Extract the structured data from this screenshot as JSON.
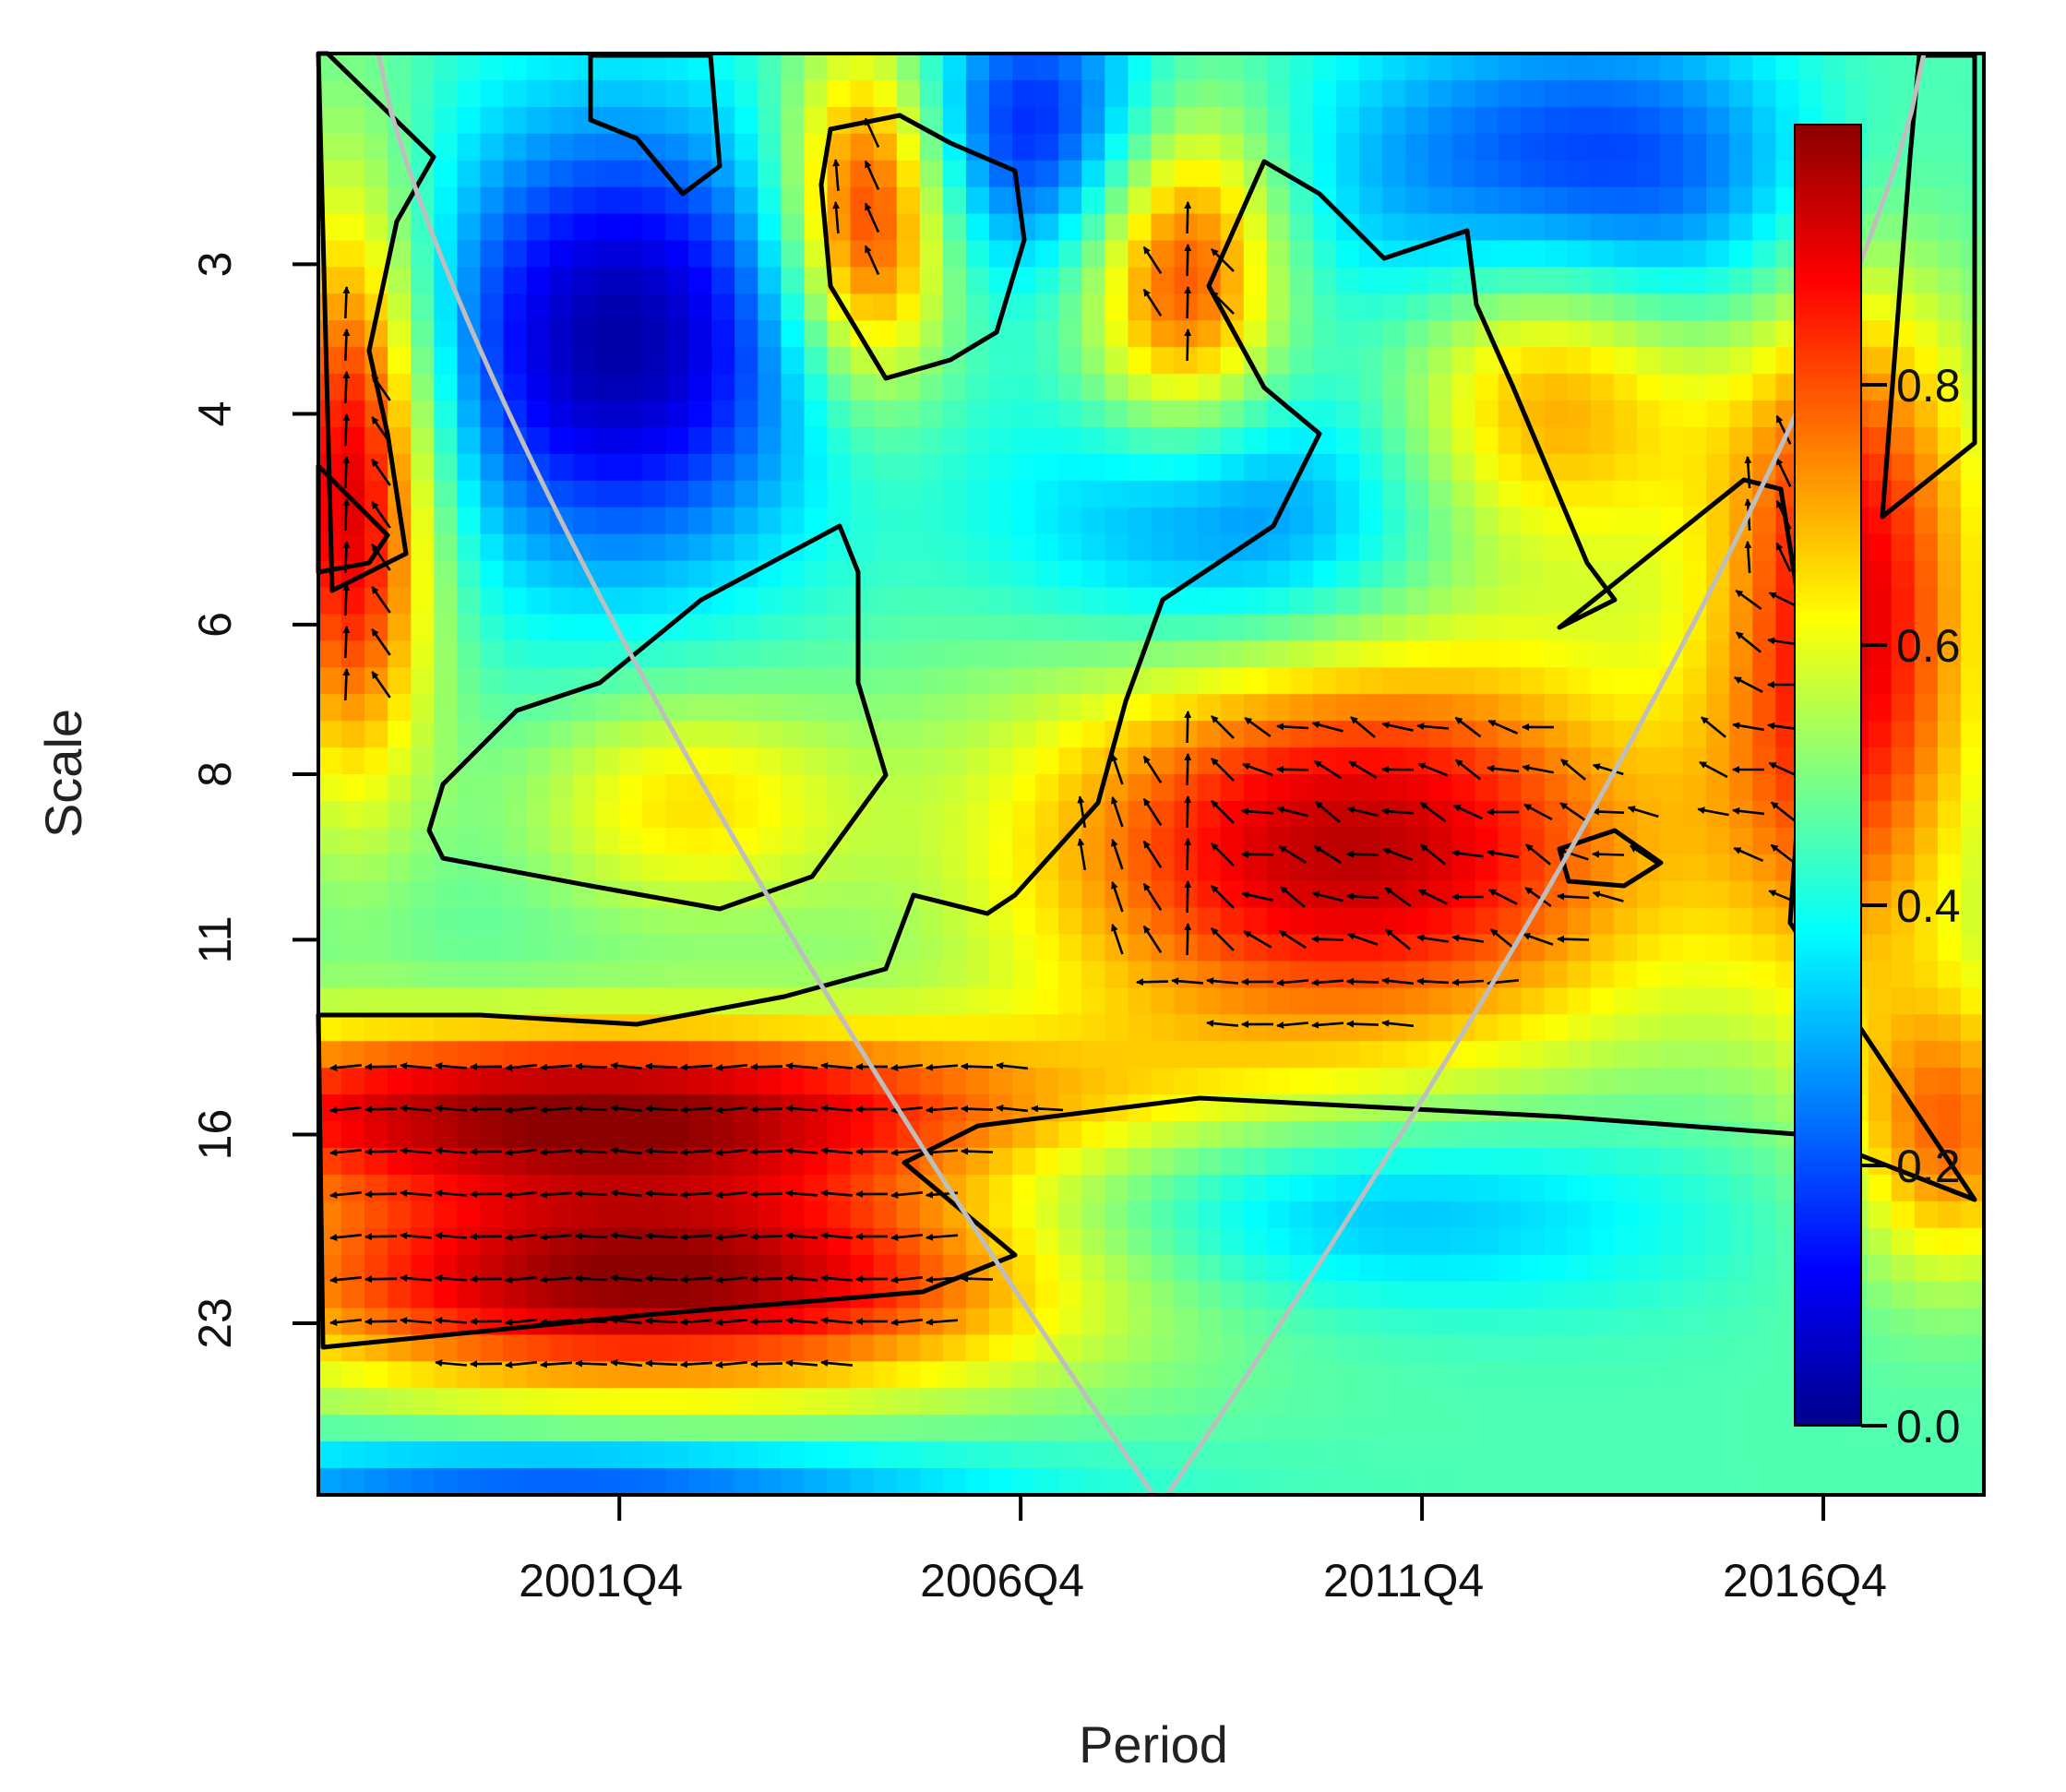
{
  "chart_data": {
    "type": "heatmap",
    "title": "",
    "xlabel": "Period",
    "ylabel": "Scale",
    "x_range": [
      1998.0,
      2018.75
    ],
    "y_range_scale": [
      2.0,
      32.0
    ],
    "y_scale": "log2",
    "x_ticks": [
      {
        "value": 2001.75,
        "label": "2001Q4"
      },
      {
        "value": 2006.75,
        "label": "2006Q4"
      },
      {
        "value": 2011.75,
        "label": "2011Q4"
      },
      {
        "value": 2016.75,
        "label": "2016Q4"
      }
    ],
    "y_ticks": [
      {
        "value": 3,
        "label": "3"
      },
      {
        "value": 4,
        "label": "4"
      },
      {
        "value": 6,
        "label": "6"
      },
      {
        "value": 8,
        "label": "8"
      },
      {
        "value": 11,
        "label": "11"
      },
      {
        "value": 16,
        "label": "16"
      },
      {
        "value": 23,
        "label": "23"
      }
    ],
    "colorbar": {
      "range": [
        0.0,
        1.0
      ],
      "ticks": [
        {
          "value": 0.0,
          "label": "0.0"
        },
        {
          "value": 0.2,
          "label": "0.2"
        },
        {
          "value": 0.4,
          "label": "0.4"
        },
        {
          "value": 0.6,
          "label": "0.6"
        },
        {
          "value": 0.8,
          "label": "0.8"
        }
      ],
      "colors": [
        "#00008b",
        "#0000ff",
        "#0080ff",
        "#00ffff",
        "#80ff80",
        "#ffff00",
        "#ff8000",
        "#ff0000",
        "#8b0000"
      ]
    },
    "colors": {
      "contour": "#000000",
      "cone_of_influence": "#bebebe",
      "arrows": "#000000"
    },
    "grid": false
  }
}
